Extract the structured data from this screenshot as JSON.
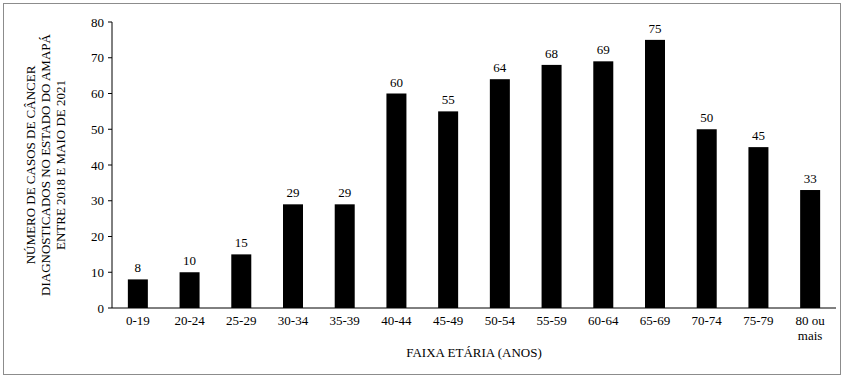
{
  "chart_data": {
    "type": "bar",
    "y_label": "NÚMERO DE CASOS DE CÂNCER DIAGNOSTICADOS NO ESTADO DO AMAPÁ ENTRE 2018 E MAIO DE 2021",
    "x_label": "FAIXA ETÁRIA (ANOS)",
    "categories": [
      "0-19",
      "20-24",
      "25-29",
      "30-34",
      "35-39",
      "40-44",
      "45-49",
      "50-54",
      "55-59",
      "60-64",
      "65-69",
      "70-74",
      "75-79",
      "80 ou mais"
    ],
    "values": [
      8,
      10,
      15,
      29,
      29,
      60,
      55,
      64,
      68,
      69,
      75,
      50,
      45,
      33
    ],
    "color": "#000000",
    "ylim": [
      0,
      80
    ],
    "yticks": [
      0,
      10,
      20,
      30,
      40,
      50,
      60,
      70,
      80
    ],
    "grid": false,
    "data_labels": true
  }
}
